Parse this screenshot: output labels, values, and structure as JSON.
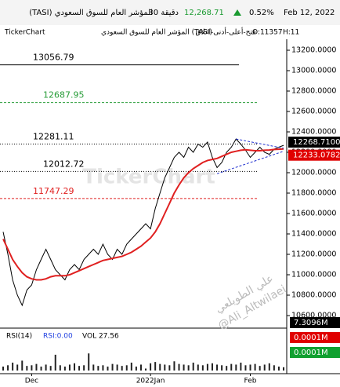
{
  "chart_data": {
    "type": "line",
    "header": {
      "title": "(TASI) المؤشر العام للسوق السعودي",
      "interval": "30 دقيقة",
      "price": "12,268.71",
      "change": "0.52%",
      "date": "Feb 12, 2022"
    },
    "subheader": {
      "brand": "TickerChart",
      "name": "المؤشر العام للسوق السعودي (TASI)",
      "ohlc": "فتح-أعلى-أدنى-اغلاق",
      "open": "O:11357",
      "high": "H:11"
    },
    "categories": [
      null,
      null,
      null,
      null,
      null,
      null,
      "Dec",
      null,
      null,
      null,
      null,
      null,
      null,
      null,
      null,
      null,
      null,
      null,
      null,
      null,
      null,
      null,
      null,
      null,
      null,
      null,
      null,
      null,
      null,
      null,
      null,
      "2022Jan",
      null,
      null,
      null,
      null,
      null,
      null,
      null,
      null,
      null,
      null,
      null,
      null,
      null,
      null,
      null,
      null,
      null,
      null,
      null,
      null,
      "Feb",
      null,
      null,
      null,
      null,
      null,
      null,
      null
    ],
    "series": [
      {
        "name": "TASI",
        "color": "#000000",
        "values": [
          11420,
          11200,
          10950,
          10800,
          10700,
          10850,
          10900,
          11050,
          11150,
          11250,
          11150,
          11050,
          11000,
          10950,
          11050,
          11100,
          11050,
          11150,
          11200,
          11250,
          11200,
          11300,
          11200,
          11150,
          11250,
          11200,
          11300,
          11350,
          11400,
          11450,
          11500,
          11450,
          11650,
          11800,
          11950,
          12050,
          12150,
          12200,
          12150,
          12250,
          12200,
          12280,
          12250,
          12300,
          12150,
          12050,
          12100,
          12200,
          12250,
          12330,
          12280,
          12220,
          12150,
          12200,
          12250,
          12200,
          12180,
          12230,
          12250,
          12268.71
        ]
      },
      {
        "name": "MA",
        "color": "#e02020",
        "values": [
          11350,
          11250,
          11150,
          11080,
          11020,
          10980,
          10960,
          10950,
          10950,
          10960,
          10980,
          10990,
          10990,
          10990,
          11000,
          11020,
          11040,
          11060,
          11080,
          11100,
          11120,
          11140,
          11150,
          11160,
          11170,
          11180,
          11200,
          11220,
          11250,
          11280,
          11320,
          11360,
          11420,
          11500,
          11600,
          11700,
          11800,
          11880,
          11950,
          12000,
          12040,
          12070,
          12100,
          12120,
          12130,
          12140,
          12160,
          12180,
          12200,
          12210,
          12220,
          12225,
          12220,
          12215,
          12215,
          12220,
          12222,
          12228,
          12230,
          12233.08
        ]
      }
    ],
    "ylim": [
      10500,
      13300
    ],
    "yticks": [
      {
        "value": 13200,
        "label": "13200.0000"
      },
      {
        "value": 13000,
        "label": "13000.0000"
      },
      {
        "value": 12800,
        "label": "12800.0000"
      },
      {
        "value": 12600,
        "label": "12600.0000"
      },
      {
        "value": 12400,
        "label": "12400.0000"
      },
      {
        "value": 12200,
        "label": "12200.0000"
      },
      {
        "value": 12000,
        "label": "12000.0000"
      },
      {
        "value": 11800,
        "label": "11800.0000"
      },
      {
        "value": 11600,
        "label": "11600.0000"
      },
      {
        "value": 11400,
        "label": "11400.0000"
      },
      {
        "value": 11200,
        "label": "11200.0000"
      },
      {
        "value": 11000,
        "label": "11000.0000"
      },
      {
        "value": 10800,
        "label": "10800.0000"
      },
      {
        "value": 10600,
        "label": "10600.0000"
      }
    ],
    "levels": [
      {
        "value": 13056.79,
        "color": "#000000",
        "dash": "solid"
      },
      {
        "value": 12687.95,
        "color": "#2a9d3a",
        "dash": "dashed"
      },
      {
        "value": 12281.11,
        "color": "#000000",
        "dash": "dotted"
      },
      {
        "value": 12012.72,
        "color": "#000000",
        "dash": "dotted"
      },
      {
        "value": 11747.29,
        "color": "#e02020",
        "dash": "dashed"
      }
    ],
    "price_labels": [
      {
        "value": 12268.71,
        "label": "12268.7100",
        "color": "#000000"
      },
      {
        "value": 12233.0782,
        "label": "12233.0782",
        "color": "#e00000"
      }
    ],
    "trendlines": [
      {
        "color": "#2030d0",
        "points": [
          [
            49,
            12330
          ],
          [
            59,
            12240
          ]
        ]
      },
      {
        "color": "#2030d0",
        "points": [
          [
            45,
            11990
          ],
          [
            59,
            12210
          ]
        ]
      }
    ],
    "watermark": {
      "brand": "TickerChart",
      "author": "علي الطويلعي",
      "handle": "@Ali_Altwilaei"
    },
    "lower_panel": {
      "rsi": "RSI(14)",
      "rsi_value": "RSI:0.00",
      "vol": "VOL 27.56",
      "badges": [
        {
          "label": "7.3096M",
          "color": "#000000"
        },
        {
          "label": "0.0001M",
          "color": "#e00000"
        },
        {
          "label": "0.0001M",
          "color": "#10a030"
        }
      ],
      "volume": [
        0.6,
        0.8,
        1.2,
        0.9,
        1.5,
        0.7,
        0.8,
        1.0,
        0.6,
        0.9,
        0.7,
        2.4,
        0.8,
        0.6,
        0.9,
        1.1,
        0.7,
        0.8,
        2.6,
        0.9,
        0.7,
        0.8,
        0.6,
        1.0,
        0.9,
        0.7,
        0.8,
        1.2,
        0.6,
        0.9,
        0.3,
        1.1,
        1.3,
        1.0,
        0.9,
        0.8,
        1.4,
        1.0,
        0.9,
        0.8,
        1.2,
        0.9,
        0.8,
        1.0,
        1.1,
        0.9,
        0.8,
        0.7,
        1.0,
        0.9,
        1.2,
        0.8,
        0.9,
        1.0,
        0.7,
        0.9,
        1.1,
        0.8,
        0.6,
        0.5
      ],
      "ylim": [
        0,
        8
      ]
    }
  }
}
